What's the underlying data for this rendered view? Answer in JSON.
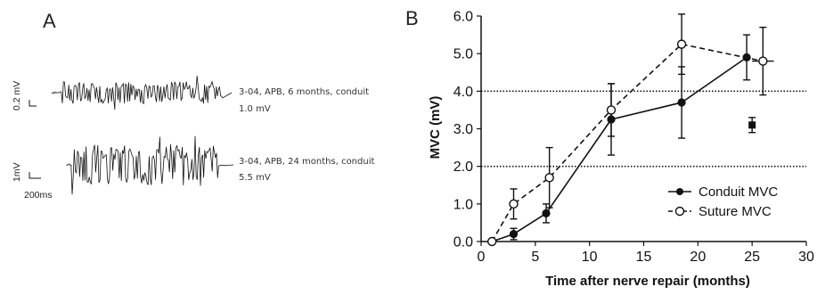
{
  "panel_a": {
    "letter": "A",
    "traces": [
      {
        "label_line1": "3-04, APB, 6 months, conduit",
        "label_line2": "1.0 mV",
        "scale_vertical": "0.2 mV"
      },
      {
        "label_line1": "3-04, APB, 24 months, conduit",
        "label_line2": "5.5 mV",
        "scale_vertical": "1mV",
        "scale_horizontal": "200ms"
      }
    ]
  },
  "panel_b": {
    "letter": "B"
  },
  "chart_data": {
    "type": "line",
    "xlabel": "Time after nerve repair (months)",
    "ylabel": "MVC (mV)",
    "xlim": [
      0,
      30
    ],
    "ylim": [
      0,
      6
    ],
    "x_tick_labels": [
      "0",
      "5",
      "10",
      "15",
      "20",
      "25",
      "30"
    ],
    "y_tick_labels": [
      "0.0",
      "1.0",
      "2.0",
      "3.0",
      "4.0",
      "5.0",
      "6.0"
    ],
    "reference_lines_y": [
      2.0,
      4.0
    ],
    "legend_position": "bottom-right",
    "series": [
      {
        "name": "Conduit MVC",
        "marker": "filled-circle",
        "line_style": "solid",
        "points": [
          {
            "x": 1,
            "y": 0.0,
            "err": 0.0
          },
          {
            "x": 3,
            "y": 0.2,
            "err": 0.15
          },
          {
            "x": 6,
            "y": 0.75,
            "err": 0.25
          },
          {
            "x": 12,
            "y": 3.25,
            "err": 0.95
          },
          {
            "x": 18.5,
            "y": 3.7,
            "err": 0.95
          },
          {
            "x": 24.5,
            "y": 4.9,
            "err": 0.6
          }
        ]
      },
      {
        "name": "Suture MVC",
        "marker": "open-circle",
        "line_style": "dashed",
        "points": [
          {
            "x": 1,
            "y": 0.0,
            "err": 0.0
          },
          {
            "x": 3,
            "y": 1.0,
            "err": 0.4
          },
          {
            "x": 6.3,
            "y": 1.7,
            "err": 0.8
          },
          {
            "x": 12,
            "y": 3.5,
            "err": 0.7
          },
          {
            "x": 18.5,
            "y": 5.25,
            "err": 0.8
          },
          {
            "x": 26,
            "y": 4.8,
            "err": 0.9,
            "xerr": 1.0
          }
        ]
      },
      {
        "marker": "filled-square",
        "points": [
          {
            "x": 25,
            "y": 3.1,
            "err": 0.2
          }
        ]
      }
    ]
  }
}
